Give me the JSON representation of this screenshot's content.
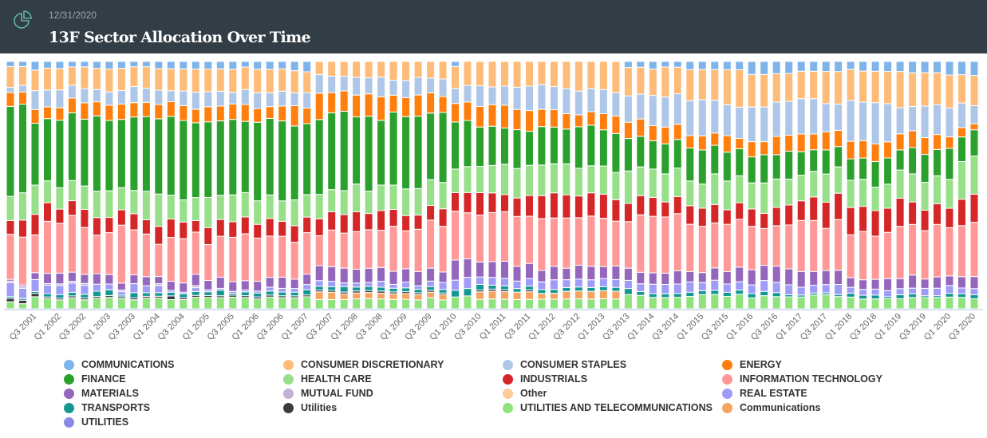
{
  "header": {
    "date": "12/31/2020",
    "title": "13F Sector Allocation Over Time",
    "icon": "pie-chart-icon"
  },
  "chart_data": {
    "type": "bar",
    "stacked": true,
    "normalized": true,
    "title": "13F Sector Allocation Over Time",
    "xlabel": "",
    "ylabel": "",
    "ylim": [
      0,
      100
    ],
    "grid": false,
    "legend_position": "bottom",
    "categories": [],
    "first_quarter": {
      "q": 1,
      "year": 2001
    },
    "num_quarters": 79,
    "tick_every": 2,
    "tick_offset": 2,
    "series": [
      {
        "key": "utt",
        "name": "UTILITIES AND TELECOMMUNICATIONS",
        "color": "#90e27f"
      },
      {
        "key": "comm2",
        "name": "Communications",
        "color": "#f4a460"
      },
      {
        "key": "util2",
        "name": "Utilities",
        "color": "#3a3a40"
      },
      {
        "key": "trans",
        "name": "TRANSPORTS",
        "color": "#129792"
      },
      {
        "key": "re",
        "name": "REAL ESTATE",
        "color": "#9e9cf7"
      },
      {
        "key": "util",
        "name": "UTILITIES",
        "color": "#8a8ae6"
      },
      {
        "key": "mf",
        "name": "MUTUAL FUND",
        "color": "#c5b0d5"
      },
      {
        "key": "mat",
        "name": "MATERIALS",
        "color": "#9467bd"
      },
      {
        "key": "it",
        "name": "INFORMATION TECHNOLOGY",
        "color": "#ff9896"
      },
      {
        "key": "ind",
        "name": "INDUSTRIALS",
        "color": "#d62728"
      },
      {
        "key": "hc",
        "name": "HEALTH CARE",
        "color": "#98df8a"
      },
      {
        "key": "fin",
        "name": "FINANCE",
        "color": "#2ca02c"
      },
      {
        "key": "en",
        "name": "ENERGY",
        "color": "#ff7f0e"
      },
      {
        "key": "cs",
        "name": "CONSUMER STAPLES",
        "color": "#aec7e8"
      },
      {
        "key": "cd",
        "name": "CONSUMER DISCRETIONARY",
        "color": "#ffbb78"
      },
      {
        "key": "oth",
        "name": "Other",
        "color": "#ffcc99"
      },
      {
        "key": "comm",
        "name": "COMMUNICATIONS",
        "color": "#7eb4ea"
      }
    ],
    "values": {
      "utt": [
        4,
        3,
        7,
        6,
        5,
        6,
        5,
        6,
        6,
        6,
        5,
        6,
        6,
        5,
        5,
        6,
        6,
        6,
        6,
        6,
        5,
        6,
        6,
        6,
        7,
        5,
        5,
        5,
        5,
        5,
        5,
        5,
        5,
        5,
        6,
        5,
        7,
        7,
        5,
        5,
        5,
        5,
        5,
        5,
        5,
        5,
        5,
        5,
        5,
        5,
        7,
        7,
        6,
        6,
        6,
        6,
        7,
        7,
        6,
        7,
        5,
        6,
        6,
        6,
        6,
        7,
        7,
        6,
        6,
        5,
        5,
        5,
        5,
        6,
        6,
        6,
        6,
        6,
        5
      ],
      "comm2": [
        0,
        0,
        0,
        0,
        0,
        0,
        0,
        0,
        0,
        0,
        0,
        0,
        0,
        0,
        0,
        0,
        0,
        0,
        0,
        0,
        0,
        0,
        0,
        0,
        0,
        4,
        4,
        3,
        3,
        3,
        3,
        3,
        3,
        3,
        3,
        3,
        0,
        0,
        4,
        4,
        4,
        4,
        4,
        3,
        3,
        4,
        4,
        4,
        4,
        4,
        0,
        0,
        0,
        0,
        0,
        0,
        0,
        0,
        0,
        0,
        0,
        0,
        0,
        0,
        0,
        0,
        0,
        0,
        0,
        0,
        0,
        0,
        0,
        0,
        0,
        0,
        0,
        0,
        0
      ],
      "util2": [
        2,
        2,
        2,
        1,
        1,
        1,
        1,
        1,
        1,
        1,
        1,
        1,
        1,
        2,
        1,
        1,
        1,
        1,
        1,
        1,
        1,
        1,
        1,
        1,
        1,
        1,
        1,
        1,
        1,
        1,
        1,
        1,
        1,
        1,
        1,
        1,
        0,
        0,
        1,
        1,
        1,
        0,
        1,
        0,
        0,
        0,
        0,
        0,
        0,
        0,
        0,
        0,
        0,
        0,
        0,
        0,
        0,
        0,
        0,
        0,
        0,
        0,
        0,
        0,
        0,
        0,
        0,
        0,
        0,
        0,
        0,
        0,
        0,
        0,
        0,
        0,
        0,
        0,
        0
      ],
      "trans": [
        1,
        1,
        1,
        2,
        2,
        2,
        2,
        3,
        3,
        1,
        3,
        2,
        2,
        2,
        2,
        2,
        2,
        3,
        1,
        2,
        2,
        2,
        2,
        2,
        3,
        2,
        2,
        3,
        2,
        2,
        2,
        2,
        2,
        2,
        2,
        2,
        4,
        4,
        3,
        2,
        2,
        2,
        2,
        2,
        2,
        2,
        2,
        2,
        2,
        2,
        3,
        2,
        2,
        2,
        2,
        2,
        2,
        2,
        2,
        2,
        2,
        2,
        2,
        1,
        1,
        1,
        1,
        1,
        2,
        2,
        2,
        1,
        2,
        2,
        1,
        1,
        2,
        2,
        2
      ],
      "re": [
        8,
        6,
        7,
        5,
        5,
        5,
        5,
        4,
        3,
        2,
        5,
        4,
        4,
        1,
        1,
        2,
        1,
        1,
        1,
        1,
        1,
        2,
        2,
        2,
        3,
        3,
        3,
        2,
        2,
        2,
        3,
        2,
        3,
        2,
        3,
        4,
        6,
        6,
        4,
        4,
        4,
        4,
        4,
        4,
        5,
        4,
        4,
        4,
        4,
        4,
        4,
        4,
        5,
        5,
        5,
        5,
        4,
        5,
        4,
        4,
        4,
        5,
        5,
        5,
        4,
        4,
        4,
        5,
        3,
        3,
        3,
        3,
        3,
        3,
        4,
        4,
        4,
        3,
        3
      ],
      "util": [
        0,
        0,
        0,
        0,
        0,
        0,
        0,
        0,
        0,
        0,
        0,
        0,
        0,
        0,
        0,
        0,
        0,
        0,
        0,
        0,
        0,
        0,
        0,
        0,
        0,
        0,
        0,
        0,
        0,
        0,
        0,
        0,
        0,
        0,
        0,
        0,
        0,
        0,
        0,
        0,
        0,
        0,
        0,
        0,
        0,
        0,
        0,
        0,
        0,
        0,
        0,
        0,
        0,
        0,
        0,
        0,
        0,
        0,
        0,
        0,
        0,
        0,
        0,
        0,
        0,
        0,
        0,
        0,
        0,
        0,
        0,
        0,
        0,
        0,
        0,
        0,
        0,
        0,
        0
      ],
      "mf": [
        1,
        1,
        0,
        1,
        1,
        1,
        1,
        0,
        0,
        1,
        0,
        0,
        1,
        0,
        0,
        1,
        0,
        0,
        0,
        0,
        0,
        0,
        0,
        0,
        0,
        0,
        0,
        0,
        0,
        0,
        0,
        0,
        0,
        0,
        0,
        0,
        0,
        0,
        0,
        0,
        0,
        0,
        0,
        0,
        0,
        0,
        0,
        0,
        0,
        0,
        0,
        0,
        0,
        0,
        0,
        0,
        0,
        0,
        0,
        0,
        0,
        0,
        0,
        0,
        0,
        0,
        0,
        0,
        0,
        0,
        0,
        0,
        0,
        0,
        0,
        0,
        0,
        0,
        0
      ],
      "mat": [
        1,
        1,
        4,
        6,
        6,
        5,
        5,
        6,
        5,
        4,
        5,
        5,
        4,
        5,
        5,
        6,
        5,
        6,
        5,
        5,
        5,
        5,
        6,
        5,
        6,
        8,
        8,
        8,
        7,
        7,
        7,
        7,
        7,
        8,
        7,
        6,
        12,
        10,
        8,
        8,
        9,
        8,
        8,
        6,
        7,
        6,
        7,
        7,
        6,
        7,
        6,
        6,
        6,
        6,
        7,
        5,
        5,
        6,
        6,
        7,
        7,
        7,
        8,
        8,
        8,
        7,
        7,
        7,
        5,
        5,
        5,
        6,
        5,
        7,
        5,
        6,
        5,
        6,
        6
      ],
      "it": [
        26,
        28,
        22,
        31,
        28,
        31,
        26,
        22,
        22,
        34,
        25,
        24,
        18,
        24,
        24,
        22,
        19,
        22,
        23,
        25,
        22,
        21,
        22,
        20,
        24,
        16,
        20,
        19,
        19,
        19,
        19,
        24,
        20,
        24,
        26,
        26,
        29,
        25,
        25,
        25,
        26,
        27,
        25,
        27,
        25,
        26,
        24,
        26,
        24,
        23,
        23,
        30,
        30,
        30,
        30,
        23,
        23,
        22,
        23,
        23,
        20,
        17,
        20,
        22,
        26,
        26,
        21,
        25,
        22,
        25,
        22,
        23,
        26,
        27,
        26,
        28,
        25,
        27,
        27
      ],
      "ind": [
        8,
        10,
        12,
        11,
        8,
        8,
        10,
        10,
        8,
        9,
        9,
        8,
        10,
        10,
        9,
        6,
        9,
        9,
        8,
        9,
        7,
        9,
        8,
        9,
        9,
        9,
        10,
        10,
        10,
        8,
        10,
        9,
        8,
        8,
        8,
        10,
        11,
        11,
        12,
        10,
        9,
        10,
        11,
        12,
        13,
        12,
        11,
        12,
        12,
        11,
        9,
        10,
        10,
        8,
        9,
        9,
        9,
        9,
        7,
        8,
        8,
        7,
        9,
        10,
        10,
        12,
        13,
        13,
        14,
        13,
        13,
        12,
        14,
        12,
        11,
        11,
        10,
        14,
        14
      ],
      "hc": [
        14,
        16,
        17,
        13,
        12,
        11,
        13,
        15,
        14,
        13,
        13,
        16,
        18,
        13,
        12,
        12,
        16,
        13,
        14,
        13,
        12,
        12,
        11,
        14,
        13,
        13,
        12,
        13,
        14,
        11,
        13,
        13,
        14,
        15,
        14,
        15,
        14,
        14,
        14,
        14,
        16,
        16,
        16,
        16,
        15,
        16,
        14,
        14,
        14,
        14,
        16,
        15,
        15,
        15,
        15,
        12,
        12,
        15,
        14,
        13,
        12,
        14,
        14,
        13,
        13,
        13,
        14,
        13,
        14,
        14,
        12,
        12,
        14,
        15,
        15,
        15,
        15,
        20,
        19
      ],
      "fin": [
        52,
        52,
        36,
        37,
        38,
        37,
        37,
        43,
        37,
        40,
        41,
        42,
        42,
        43,
        43,
        39,
        40,
        40,
        39,
        38,
        40,
        39,
        43,
        40,
        41,
        40,
        42,
        43,
        34,
        37,
        33,
        39,
        38,
        41,
        36,
        40,
        28,
        25,
        21,
        20,
        19,
        21,
        18,
        20,
        19,
        18,
        21,
        21,
        18,
        20,
        16,
        16,
        15,
        16,
        15,
        16,
        17,
        14,
        14,
        13,
        12,
        13,
        12,
        14,
        12,
        11,
        12,
        10,
        11,
        11,
        13,
        13,
        10,
        14,
        15,
        14,
        16,
        13,
        13
      ],
      "en": [
        8,
        7,
        8,
        7,
        7,
        8,
        9,
        8,
        8,
        9,
        8,
        8,
        8,
        8,
        8,
        7,
        8,
        8,
        8,
        9,
        7,
        6,
        8,
        11,
        9,
        14,
        11,
        11,
        11,
        11,
        12,
        9,
        10,
        12,
        11,
        9,
        11,
        10,
        11,
        11,
        12,
        11,
        11,
        9,
        9,
        8,
        6,
        7,
        8,
        9,
        8,
        9,
        8,
        9,
        8,
        6,
        7,
        6,
        8,
        5,
        7,
        6,
        9,
        8,
        9,
        8,
        9,
        8,
        9,
        9,
        9,
        8,
        8,
        9,
        9,
        8,
        6,
        5,
        3
      ],
      "cs": [
        3,
        4,
        11,
        10,
        10,
        7,
        8,
        7,
        7,
        8,
        9,
        8,
        8,
        6,
        8,
        9,
        8,
        8,
        6,
        8,
        8,
        7,
        8,
        7,
        9,
        10,
        9,
        8,
        9,
        8,
        10,
        8,
        9,
        10,
        8,
        10,
        9,
        9,
        11,
        9,
        10,
        12,
        13,
        13,
        12,
        13,
        12,
        12,
        12,
        12,
        13,
        13,
        16,
        16,
        16,
        17,
        18,
        16,
        15,
        15,
        16,
        16,
        17,
        17,
        18,
        18,
        14,
        13,
        21,
        20,
        21,
        19,
        13,
        13,
        17,
        16,
        15,
        13,
        9
      ],
      "cd": [
        12,
        11,
        12,
        13,
        12,
        10,
        12,
        12,
        12,
        13,
        11,
        12,
        12,
        12,
        12,
        12,
        12,
        12,
        12,
        12,
        12,
        12,
        12,
        12,
        12,
        7,
        8,
        8,
        8,
        8,
        8,
        10,
        10,
        9,
        9,
        10,
        13,
        13,
        13,
        13,
        13,
        14,
        13,
        12,
        13,
        14,
        15,
        14,
        14,
        16,
        14,
        14,
        14,
        16,
        14,
        15,
        15,
        15,
        17,
        18,
        15,
        15,
        14,
        14,
        14,
        14,
        16,
        16,
        16,
        16,
        16,
        16,
        18,
        18,
        18,
        17,
        17,
        15,
        15
      ],
      "oth": [
        0,
        0,
        0,
        0,
        0,
        0,
        0,
        0,
        0,
        0,
        0,
        0,
        0,
        0,
        0,
        0,
        0,
        0,
        0,
        0,
        0,
        0,
        0,
        0,
        0,
        0,
        0,
        0,
        0,
        0,
        0,
        0,
        0,
        0,
        0,
        0,
        0,
        0,
        0,
        0,
        0,
        0,
        0,
        0,
        0,
        0,
        0,
        0,
        0,
        0,
        0,
        0,
        0,
        0,
        0,
        0,
        0,
        0,
        0,
        0,
        0,
        0,
        0,
        0,
        0,
        0,
        0,
        0,
        0,
        0,
        0,
        0,
        0,
        0,
        0,
        0,
        0,
        0,
        0
      ],
      "comm": [
        3,
        3,
        5,
        4,
        4,
        3,
        3,
        4,
        4,
        4,
        3,
        3,
        4,
        4,
        4,
        4,
        4,
        4,
        4,
        3,
        4,
        4,
        4,
        5,
        6,
        0,
        0,
        0,
        0,
        0,
        0,
        0,
        0,
        0,
        0,
        0,
        3,
        0,
        0,
        0,
        0,
        0,
        0,
        0,
        0,
        0,
        0,
        0,
        0,
        0,
        3,
        3,
        4,
        3,
        3,
        4,
        4,
        4,
        4,
        4,
        6,
        6,
        6,
        6,
        5,
        5,
        5,
        5,
        4,
        5,
        5,
        5,
        5,
        6,
        6,
        6,
        7,
        7,
        7
      ]
    }
  },
  "legend": [
    {
      "label": "COMMUNICATIONS",
      "color": "#7eb4ea"
    },
    {
      "label": "CONSUMER DISCRETIONARY",
      "color": "#ffbb78"
    },
    {
      "label": "CONSUMER STAPLES",
      "color": "#aec7e8"
    },
    {
      "label": "ENERGY",
      "color": "#ff7f0e"
    },
    {
      "label": "FINANCE",
      "color": "#2ca02c"
    },
    {
      "label": "HEALTH CARE",
      "color": "#98df8a"
    },
    {
      "label": "INDUSTRIALS",
      "color": "#d62728"
    },
    {
      "label": "INFORMATION TECHNOLOGY",
      "color": "#ff9896"
    },
    {
      "label": "MATERIALS",
      "color": "#9467bd"
    },
    {
      "label": "MUTUAL FUND",
      "color": "#c5b0d5"
    },
    {
      "label": "Other",
      "color": "#ffcc99"
    },
    {
      "label": "REAL ESTATE",
      "color": "#9e9cf7"
    },
    {
      "label": "TRANSPORTS",
      "color": "#129792"
    },
    {
      "label": "Utilities",
      "color": "#3a3a40"
    },
    {
      "label": "UTILITIES AND TELECOMMUNICATIONS",
      "color": "#90e27f"
    },
    {
      "label": "Communications",
      "color": "#f4a460"
    },
    {
      "label": "UTILITIES",
      "color": "#8a8ae6"
    }
  ]
}
